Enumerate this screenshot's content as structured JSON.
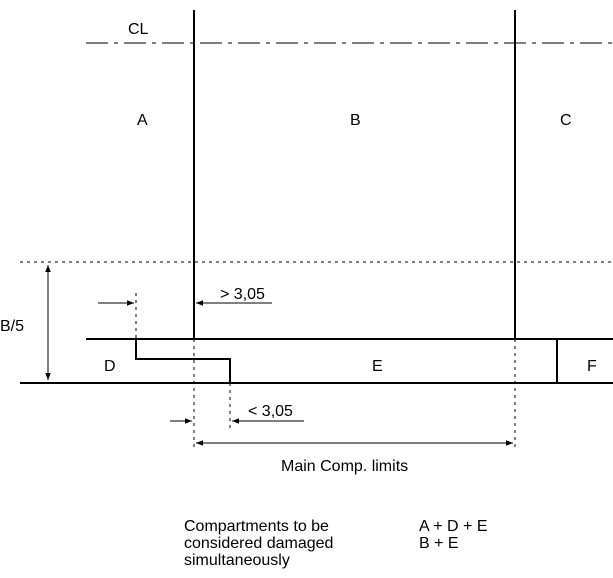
{
  "labels": {
    "centerline": "CL",
    "A": "A",
    "B": "B",
    "C": "C",
    "D": "D",
    "E": "E",
    "F": "F",
    "b_over_5": "B/5",
    "gt_dim": "> 3,05",
    "lt_dim": "< 3,05",
    "main_limits": "Main Comp. limits"
  },
  "caption": {
    "lines": [
      "Compartments to be",
      "considered damaged",
      "simultaneously"
    ],
    "combos": [
      "A + D + E",
      "B + E"
    ]
  }
}
